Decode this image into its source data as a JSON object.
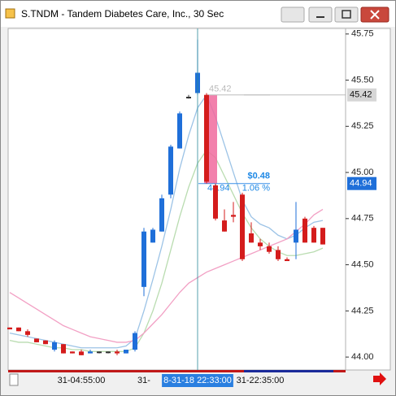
{
  "chart_data": {
    "type": "candlestick",
    "title": "S.TNDM - Tandem Diabetes Care, Inc., 30 Sec",
    "categories": [
      null,
      null,
      null,
      null,
      null,
      null,
      null,
      null,
      "31-04:55:00",
      null,
      null,
      null,
      null,
      null,
      null,
      "31-",
      null,
      null,
      null,
      null,
      null,
      "8-31-18 22:33:00",
      null,
      null,
      null,
      null,
      null,
      null,
      "31-22:35:00",
      null,
      null,
      null,
      null,
      null,
      null,
      null
    ],
    "open": [
      44.16,
      44.16,
      44.14,
      44.1,
      44.09,
      44.04,
      44.07,
      44.03,
      44.03,
      44.02,
      44.03,
      44.03,
      44.03,
      44.02,
      44.04,
      44.38,
      44.62,
      44.68,
      44.88,
      45.13,
      45.41,
      45.43,
      45.42,
      44.93,
      44.74,
      44.77,
      44.88,
      44.67,
      44.62,
      44.6,
      44.58,
      44.53,
      44.62,
      44.75,
      44.7,
      44.7
    ],
    "high": [
      44.16,
      44.16,
      44.15,
      44.1,
      44.09,
      44.09,
      44.07,
      44.03,
      44.04,
      44.04,
      44.03,
      44.03,
      44.04,
      44.04,
      44.14,
      44.7,
      44.7,
      44.88,
      45.15,
      45.33,
      45.42,
      45.72,
      45.43,
      44.94,
      44.8,
      44.84,
      44.89,
      44.73,
      44.64,
      44.62,
      44.6,
      44.54,
      44.84,
      44.76,
      44.71,
      44.7
    ],
    "low": [
      44.15,
      44.14,
      44.11,
      44.08,
      44.07,
      44.03,
      44.02,
      44.02,
      44.01,
      44.02,
      44.02,
      44.02,
      44.01,
      44.02,
      44.03,
      44.33,
      44.62,
      44.68,
      44.86,
      45.13,
      45.4,
      45.42,
      44.94,
      44.74,
      44.68,
      44.73,
      44.52,
      44.62,
      44.58,
      44.56,
      44.52,
      44.52,
      44.53,
      44.62,
      44.62,
      44.61
    ],
    "close": [
      44.15,
      44.14,
      44.12,
      44.08,
      44.07,
      44.08,
      44.02,
      44.02,
      44.01,
      44.03,
      44.03,
      44.03,
      44.02,
      44.04,
      44.13,
      44.68,
      44.69,
      44.86,
      45.14,
      45.32,
      45.41,
      45.54,
      44.95,
      44.75,
      44.68,
      44.76,
      44.53,
      44.62,
      44.6,
      44.57,
      44.53,
      44.52,
      44.69,
      44.62,
      44.62,
      44.61
    ],
    "up_color": "#1f6fd9",
    "down_color": "#d41c1c",
    "flat_color": "#333333",
    "overlays": [
      {
        "color": "#9cc3e6",
        "values": [
          44.13,
          44.12,
          44.11,
          44.1,
          44.09,
          44.08,
          44.07,
          44.06,
          44.05,
          44.05,
          44.05,
          44.05,
          44.05,
          44.06,
          44.1,
          44.25,
          44.42,
          44.6,
          44.8,
          45.02,
          45.2,
          45.35,
          45.42,
          45.3,
          45.15,
          45.0,
          44.85,
          44.76,
          44.72,
          44.7,
          44.66,
          44.64,
          44.66,
          44.7,
          44.73,
          44.74
        ]
      },
      {
        "color": "#b9dcb0",
        "values": [
          44.09,
          44.08,
          44.08,
          44.07,
          44.06,
          44.05,
          44.05,
          44.04,
          44.04,
          44.03,
          44.03,
          44.03,
          44.03,
          44.03,
          44.05,
          44.13,
          44.25,
          44.4,
          44.58,
          44.76,
          44.92,
          45.05,
          45.12,
          45.08,
          44.98,
          44.88,
          44.78,
          44.7,
          44.64,
          44.6,
          44.57,
          44.55,
          44.55,
          44.56,
          44.57,
          44.59
        ]
      },
      {
        "color": "#f2a0c4",
        "values": [
          44.35,
          44.32,
          44.29,
          44.26,
          44.23,
          44.2,
          44.17,
          44.15,
          44.13,
          44.11,
          44.1,
          44.09,
          44.08,
          44.08,
          44.09,
          44.13,
          44.18,
          44.23,
          44.29,
          44.35,
          44.4,
          44.43,
          44.46,
          44.48,
          44.5,
          44.52,
          44.54,
          44.56,
          44.58,
          44.6,
          44.62,
          44.64,
          44.68,
          44.72,
          44.77,
          44.8
        ]
      }
    ],
    "ylim": [
      43.93,
      45.78
    ],
    "yticks": [
      {
        "value": 44,
        "label": "44.00"
      },
      {
        "value": 44.25,
        "label": "44.25"
      },
      {
        "value": 44.5,
        "label": "44.50"
      },
      {
        "value": 44.75,
        "label": "44.75"
      },
      {
        "value": 45,
        "label": "45.00"
      },
      {
        "value": 45.25,
        "label": "45.25"
      },
      {
        "value": 45.5,
        "label": "45.50"
      },
      {
        "value": 45.75,
        "label": "45.75"
      }
    ],
    "crosshair": {
      "index": 21,
      "y": 45.42
    },
    "measure": {
      "index": 22,
      "from": 45.42,
      "to": 44.94,
      "change": "$0.48",
      "percent": "1.06 %"
    }
  }
}
